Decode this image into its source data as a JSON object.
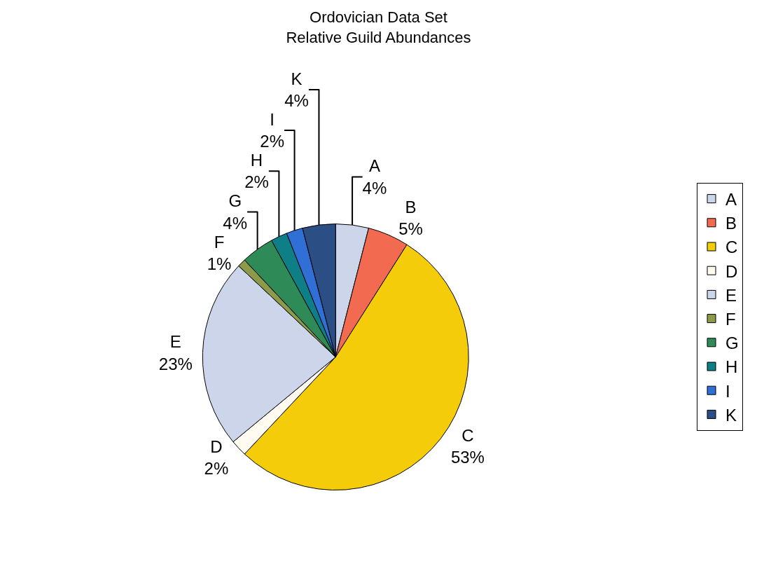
{
  "chart_data": {
    "type": "pie",
    "title": "Ordovician Data Set\nRelative Guild Abundances",
    "categories": [
      "A",
      "B",
      "C",
      "D",
      "E",
      "F",
      "G",
      "H",
      "I",
      "K"
    ],
    "values": [
      4,
      5,
      53,
      2,
      23,
      1,
      4,
      2,
      2,
      4
    ],
    "value_labels": [
      "4%",
      "5%",
      "53%",
      "2%",
      "23%",
      "1%",
      "4%",
      "2%",
      "2%",
      "4%"
    ],
    "colors": [
      "#ccd5ea",
      "#f26a4f",
      "#f5cc0a",
      "#fffbf0",
      "#ccd5ea",
      "#8c9a4a",
      "#2e8b57",
      "#0e7f86",
      "#2f6fd6",
      "#2b4f84"
    ],
    "legend": "right"
  }
}
